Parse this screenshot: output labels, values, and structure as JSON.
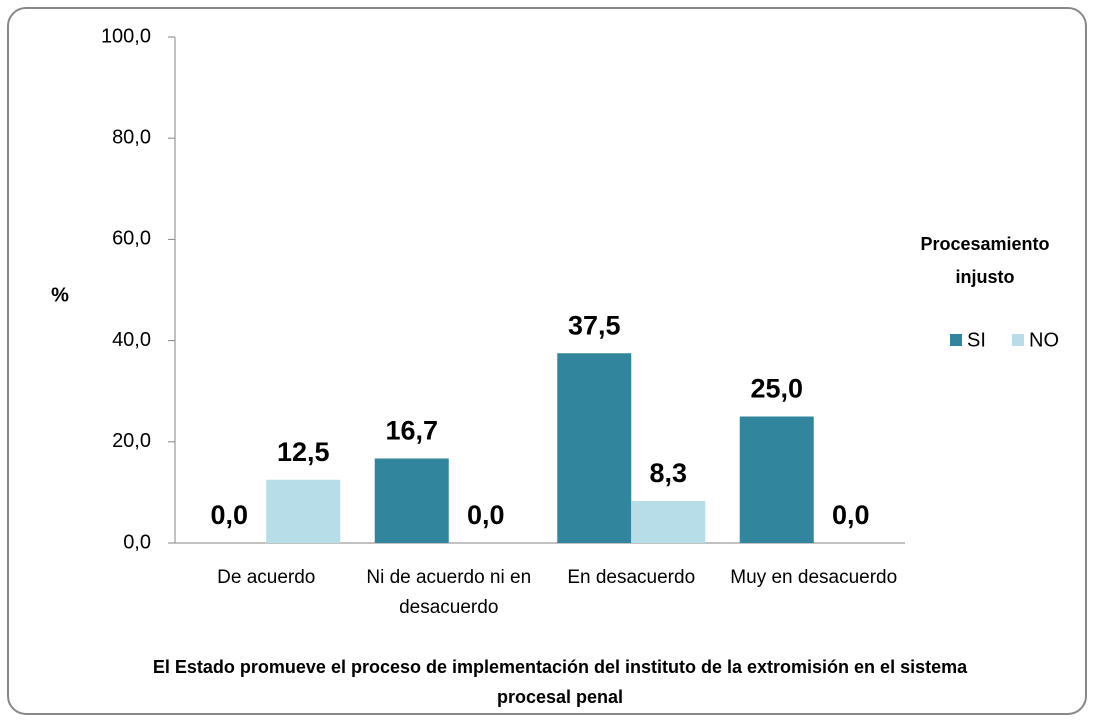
{
  "chart_data": {
    "type": "bar",
    "y_label": "%",
    "x_label": "El Estado promueve el proceso de implementación del instituto de la extromisión en el sistema procesal penal",
    "legend_title": "Procesamiento injusto",
    "legend": "right",
    "categories": [
      "De acuerdo",
      "Ni de acuerdo ni en desacuerdo",
      "En desacuerdo",
      "Muy en desacuerdo"
    ],
    "series": [
      {
        "name": "SI",
        "color": "#31859c",
        "values": [
          0,
          16.7,
          37.5,
          25
        ],
        "value_labels": [
          "0,0",
          "16,7",
          "37,5",
          "25,0"
        ]
      },
      {
        "name": "NO",
        "color": "#b7dde8",
        "values": [
          12.5,
          0,
          8.3,
          0
        ],
        "value_labels": [
          "12,5",
          "0,0",
          "8,3",
          "0,0"
        ]
      }
    ],
    "ylim": [
      0,
      100
    ],
    "yticks": [
      {
        "value": 0,
        "label": "0,0"
      },
      {
        "value": 20,
        "label": "20,0"
      },
      {
        "value": 40,
        "label": "40,0"
      },
      {
        "value": 60,
        "label": "60,0"
      },
      {
        "value": 80,
        "label": "80,0"
      },
      {
        "value": 100,
        "label": "100,0"
      }
    ],
    "grid": false
  }
}
